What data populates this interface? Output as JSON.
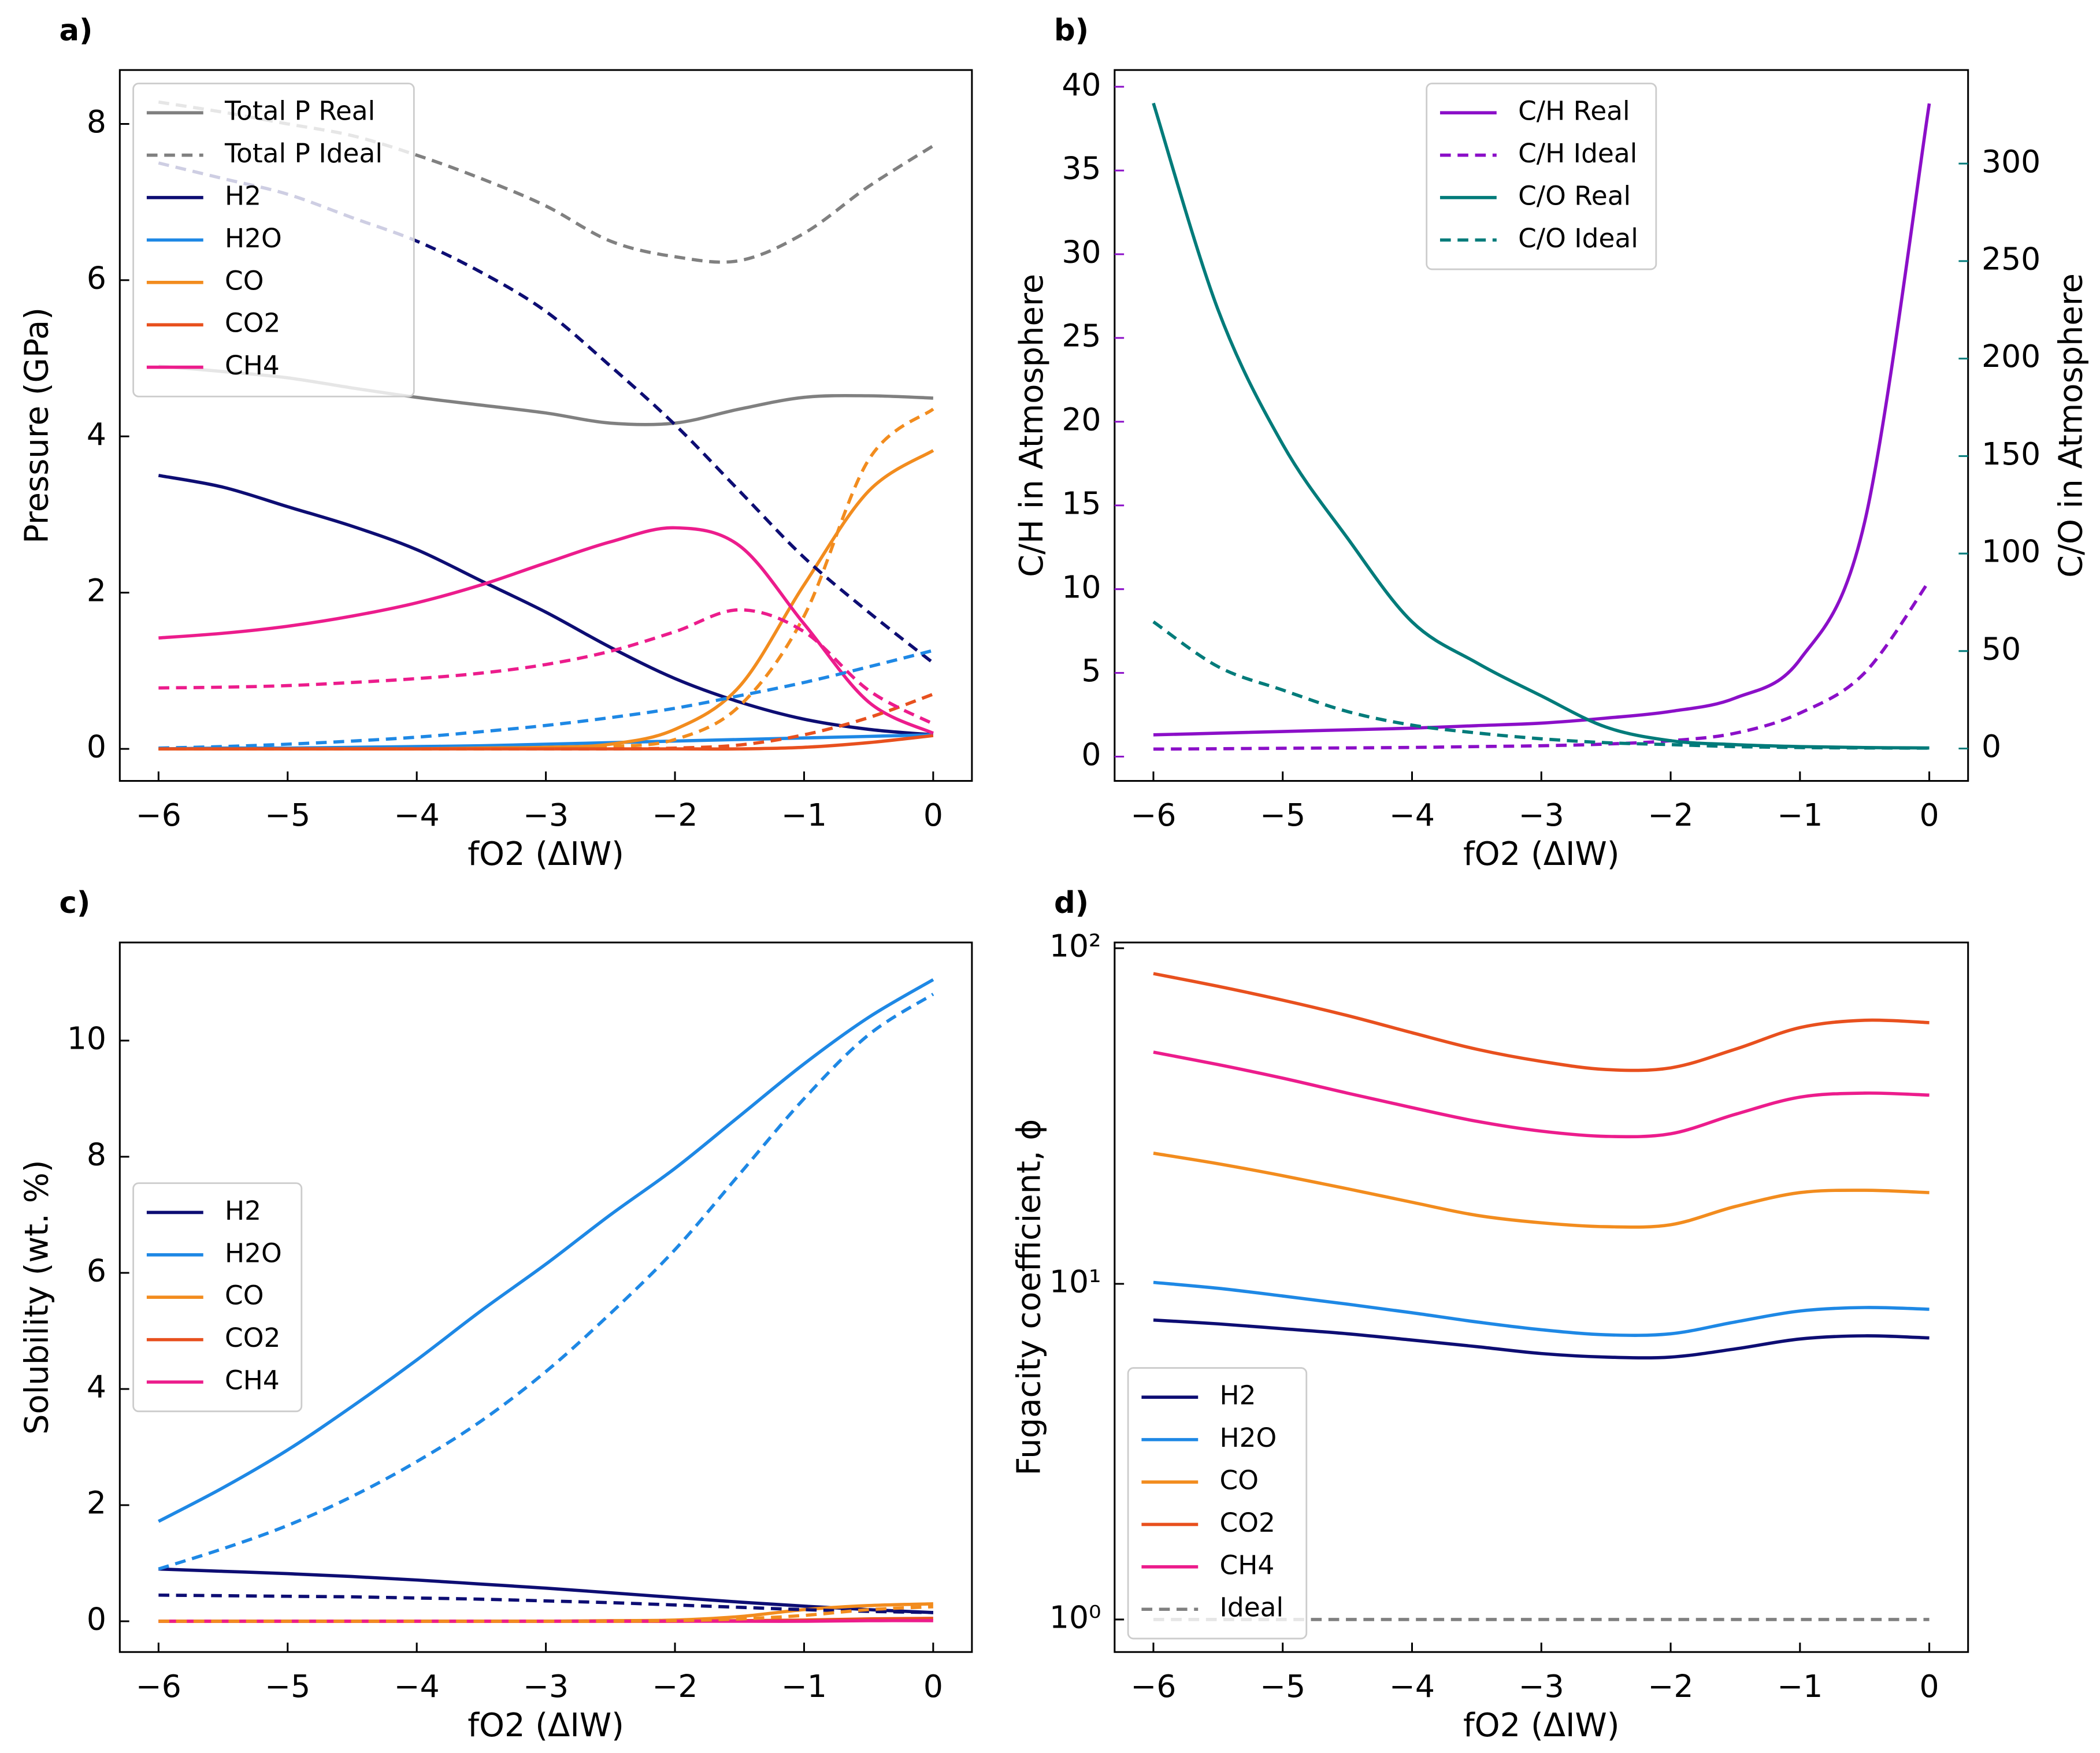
{
  "chart_data": [
    {
      "type": "line",
      "panel": "a)",
      "xlabel": "fO2 (ΔIW)",
      "ylabel": "Pressure (GPa)",
      "legend": "upper left",
      "xlim": [
        -6.3,
        0.3
      ],
      "ylim": [
        -0.41,
        8.69
      ],
      "xticks": [
        {
          "value": -6,
          "label": "−6"
        },
        {
          "value": -5,
          "label": "−5"
        },
        {
          "value": -4,
          "label": "−4"
        },
        {
          "value": -3,
          "label": "−3"
        },
        {
          "value": -2,
          "label": "−2"
        },
        {
          "value": -1,
          "label": "−1"
        },
        0
      ],
      "yticks": [
        0,
        2,
        4,
        6,
        8
      ],
      "x": [
        -6,
        -5.5,
        -5,
        -4.5,
        -4,
        -3.5,
        -3,
        -2.5,
        -2,
        -1.5,
        -1,
        -0.5,
        0
      ],
      "series": [
        {
          "name": "Total P Real",
          "color": "#808080",
          "linestyle": "solid",
          "values": [
            4.9,
            4.83,
            4.75,
            4.62,
            4.5,
            4.4,
            4.3,
            4.17,
            4.17,
            4.35,
            4.5,
            4.52,
            4.49
          ]
        },
        {
          "name": "Total P Ideal",
          "color": "#808080",
          "linestyle": "dashed",
          "values": [
            8.28,
            8.15,
            8.0,
            7.85,
            7.6,
            7.3,
            6.95,
            6.5,
            6.3,
            6.25,
            6.6,
            7.2,
            7.72
          ]
        },
        {
          "name": "H2",
          "color": "#0d0d73",
          "linestyle": "solid",
          "values": [
            3.5,
            3.35,
            3.1,
            2.85,
            2.55,
            2.15,
            1.75,
            1.3,
            0.9,
            0.6,
            0.38,
            0.25,
            0.18
          ]
        },
        {
          "name": "H2O",
          "color": "#1e88e5",
          "linestyle": "solid",
          "values": [
            0,
            0.01,
            0.01,
            0.02,
            0.03,
            0.04,
            0.06,
            0.08,
            0.1,
            0.12,
            0.14,
            0.16,
            0.18
          ]
        },
        {
          "name": "CO",
          "color": "#f28c1e",
          "linestyle": "solid",
          "values": [
            0,
            0,
            0,
            0,
            0,
            0.01,
            0.02,
            0.06,
            0.25,
            0.8,
            2.1,
            3.3,
            3.82
          ]
        },
        {
          "name": "CO2",
          "color": "#e8501e",
          "linestyle": "solid",
          "values": [
            0,
            0,
            0,
            0,
            0,
            0,
            0,
            0,
            0,
            0,
            0.02,
            0.08,
            0.17
          ]
        },
        {
          "name": "CH4",
          "color": "#ec1c8c",
          "linestyle": "solid",
          "values": [
            1.42,
            1.48,
            1.57,
            1.7,
            1.87,
            2.1,
            2.38,
            2.65,
            2.83,
            2.6,
            1.6,
            0.6,
            0.2
          ]
        },
        {
          "color": "#0d0d73",
          "linestyle": "dashed",
          "values": [
            7.5,
            7.3,
            7.1,
            6.8,
            6.5,
            6.1,
            5.6,
            4.9,
            4.15,
            3.3,
            2.45,
            1.75,
            1.1
          ]
        },
        {
          "color": "#1e88e5",
          "linestyle": "dashed",
          "values": [
            0.01,
            0.03,
            0.06,
            0.1,
            0.15,
            0.22,
            0.3,
            0.4,
            0.52,
            0.68,
            0.85,
            1.05,
            1.26
          ]
        },
        {
          "color": "#f28c1e",
          "linestyle": "dashed",
          "values": [
            0,
            0,
            0,
            0,
            0,
            0,
            0.01,
            0.03,
            0.12,
            0.55,
            1.7,
            3.7,
            4.35
          ]
        },
        {
          "color": "#e8501e",
          "linestyle": "dashed",
          "values": [
            0,
            0,
            0,
            0,
            0,
            0,
            0,
            0,
            0.01,
            0.05,
            0.18,
            0.4,
            0.7
          ]
        },
        {
          "color": "#ec1c8c",
          "linestyle": "dashed",
          "values": [
            0.78,
            0.79,
            0.81,
            0.85,
            0.9,
            0.97,
            1.08,
            1.25,
            1.5,
            1.78,
            1.5,
            0.75,
            0.32
          ]
        }
      ]
    },
    {
      "type": "line",
      "panel": "b)",
      "xlabel": "fO2 (ΔIW)",
      "ylabel": "C/H in Atmosphere",
      "y2label": "C/O in Atmosphere",
      "legend": "upper center",
      "ycolor": "#8b0fc8",
      "y2color": "#007b7a",
      "xlim": [
        -6.3,
        0.3
      ],
      "ylim": [
        -1.45,
        41
      ],
      "y2lim": [
        -16.6,
        348
      ],
      "xticks": [
        {
          "value": -6,
          "label": "−6"
        },
        {
          "value": -5,
          "label": "−5"
        },
        {
          "value": -4,
          "label": "−4"
        },
        {
          "value": -3,
          "label": "−3"
        },
        {
          "value": -2,
          "label": "−2"
        },
        {
          "value": -1,
          "label": "−1"
        },
        0
      ],
      "yticks": [
        0,
        5,
        10,
        15,
        20,
        25,
        30,
        35,
        40
      ],
      "y2ticks": [
        0,
        50,
        100,
        150,
        200,
        250,
        300
      ],
      "x": [
        -6,
        -5.5,
        -5,
        -4.5,
        -4,
        -3.5,
        -3,
        -2.5,
        -2,
        -1.5,
        -1,
        -0.5,
        0
      ],
      "series": [
        {
          "name": "C/H Real",
          "color": "#8b0fc8",
          "linestyle": "solid",
          "values": [
            1.3,
            1.4,
            1.5,
            1.6,
            1.7,
            1.85,
            2.0,
            2.3,
            2.7,
            3.5,
            5.8,
            14,
            39
          ]
        },
        {
          "name": "C/H Ideal",
          "color": "#8b0fc8",
          "linestyle": "dashed",
          "values": [
            0.45,
            0.47,
            0.5,
            0.52,
            0.55,
            0.6,
            0.65,
            0.75,
            0.95,
            1.4,
            2.6,
            5.0,
            10.5
          ]
        },
        {
          "name": "C/O Real",
          "color": "#007b7a",
          "linestyle": "solid",
          "axis": "y2",
          "values": [
            331,
            225,
            156,
            108,
            65,
            44,
            27,
            11,
            4,
            2,
            1,
            0.5,
            0.3
          ]
        },
        {
          "name": "C/O Ideal",
          "color": "#007b7a",
          "linestyle": "dashed",
          "axis": "y2",
          "values": [
            65,
            42,
            30,
            19,
            12,
            8,
            5,
            3,
            2,
            1,
            0.5,
            0.3,
            0.2
          ]
        }
      ]
    },
    {
      "type": "line",
      "panel": "c)",
      "xlabel": "fO2 (ΔIW)",
      "ylabel": "Solubility (wt. %)",
      "legend": "center left",
      "xlim": [
        -6.3,
        0.3
      ],
      "ylim": [
        -0.53,
        11.69
      ],
      "xticks": [
        {
          "value": -6,
          "label": "−6"
        },
        {
          "value": -5,
          "label": "−5"
        },
        {
          "value": -4,
          "label": "−4"
        },
        {
          "value": -3,
          "label": "−3"
        },
        {
          "value": -2,
          "label": "−2"
        },
        {
          "value": -1,
          "label": "−1"
        },
        0
      ],
      "yticks": [
        0,
        2,
        4,
        6,
        8,
        10
      ],
      "x": [
        -6,
        -5.5,
        -5,
        -4.5,
        -4,
        -3.5,
        -3,
        -2.5,
        -2,
        -1.5,
        -1,
        -0.5,
        0
      ],
      "series": [
        {
          "name": "H2",
          "color": "#0d0d73",
          "linestyle": "solid",
          "values": [
            0.9,
            0.86,
            0.82,
            0.77,
            0.71,
            0.64,
            0.57,
            0.49,
            0.41,
            0.33,
            0.26,
            0.2,
            0.15
          ]
        },
        {
          "name": "H2O",
          "color": "#1e88e5",
          "linestyle": "solid",
          "values": [
            1.72,
            2.3,
            2.95,
            3.7,
            4.5,
            5.35,
            6.15,
            7.0,
            7.8,
            8.7,
            9.6,
            10.4,
            11.05
          ]
        },
        {
          "name": "CO",
          "color": "#f28c1e",
          "linestyle": "solid",
          "values": [
            0,
            0,
            0,
            0,
            0,
            0,
            0,
            0.01,
            0.02,
            0.08,
            0.2,
            0.27,
            0.3
          ]
        },
        {
          "name": "CO2",
          "color": "#e8501e",
          "linestyle": "solid",
          "values": [
            0,
            0,
            0,
            0,
            0,
            0,
            0,
            0,
            0,
            0.01,
            0.02,
            0.04,
            0.05
          ]
        },
        {
          "name": "CH4",
          "color": "#ec1c8c",
          "linestyle": "solid",
          "values": [
            0,
            0,
            0,
            0,
            0,
            0,
            0,
            0,
            0,
            0,
            0,
            0.01,
            0.01
          ]
        },
        {
          "color": "#0d0d73",
          "linestyle": "dashed",
          "values": [
            0.45,
            0.44,
            0.43,
            0.42,
            0.4,
            0.38,
            0.35,
            0.32,
            0.28,
            0.24,
            0.2,
            0.17,
            0.15
          ]
        },
        {
          "color": "#1e88e5",
          "linestyle": "dashed",
          "values": [
            0.9,
            1.25,
            1.65,
            2.15,
            2.75,
            3.45,
            4.3,
            5.3,
            6.4,
            7.7,
            9.0,
            10.1,
            10.8
          ]
        },
        {
          "color": "#f28c1e",
          "linestyle": "dashed",
          "values": [
            0,
            0,
            0,
            0,
            0,
            0,
            0,
            0,
            0.01,
            0.04,
            0.1,
            0.2,
            0.25
          ]
        }
      ]
    },
    {
      "type": "line",
      "panel": "d)",
      "xlabel": "fO2 (ΔIW)",
      "ylabel": "Fugacity coefficient, ϕ",
      "legend": "lower left",
      "ylog": true,
      "xlim": [
        -6.3,
        0.3
      ],
      "ylim": [
        0.8,
        104
      ],
      "xticks": [
        {
          "value": -6,
          "label": "−6"
        },
        {
          "value": -5,
          "label": "−5"
        },
        {
          "value": -4,
          "label": "−4"
        },
        {
          "value": -3,
          "label": "−3"
        },
        {
          "value": -2,
          "label": "−2"
        },
        {
          "value": -1,
          "label": "−1"
        },
        0
      ],
      "yticks": [
        {
          "value": 1,
          "label": "10⁰"
        },
        {
          "value": 10,
          "label": "10¹"
        },
        {
          "value": 100,
          "label": "10²"
        }
      ],
      "x": [
        -6,
        -5.5,
        -5,
        -4.5,
        -4,
        -3.5,
        -3,
        -2.5,
        -2,
        -1.5,
        -1,
        -0.5,
        0
      ],
      "series": [
        {
          "name": "H2",
          "color": "#0d0d73",
          "linestyle": "solid",
          "values": [
            7.8,
            7.6,
            7.35,
            7.1,
            6.8,
            6.5,
            6.2,
            6.05,
            6.05,
            6.4,
            6.85,
            7.0,
            6.9
          ]
        },
        {
          "name": "H2O",
          "color": "#1e88e5",
          "linestyle": "solid",
          "values": [
            10.1,
            9.7,
            9.2,
            8.7,
            8.2,
            7.7,
            7.3,
            7.05,
            7.1,
            7.7,
            8.3,
            8.5,
            8.4
          ]
        },
        {
          "name": "CO",
          "color": "#f28c1e",
          "linestyle": "solid",
          "values": [
            24.5,
            22.8,
            21,
            19.2,
            17.5,
            16,
            15.2,
            14.8,
            15,
            17,
            18.7,
            19,
            18.7
          ]
        },
        {
          "name": "CO2",
          "color": "#e8501e",
          "linestyle": "solid",
          "values": [
            84,
            77,
            70,
            63,
            56,
            50,
            46,
            43.5,
            44,
            50,
            58,
            61,
            60
          ]
        },
        {
          "name": "CH4",
          "color": "#ec1c8c",
          "linestyle": "solid",
          "values": [
            49,
            45,
            41,
            37,
            33.5,
            30.5,
            28.5,
            27.5,
            28,
            32,
            36,
            37,
            36.5
          ]
        },
        {
          "name": "Ideal",
          "color": "#808080",
          "linestyle": "dashed",
          "values": [
            1,
            1,
            1,
            1,
            1,
            1,
            1,
            1,
            1,
            1,
            1,
            1,
            1
          ]
        }
      ]
    }
  ]
}
